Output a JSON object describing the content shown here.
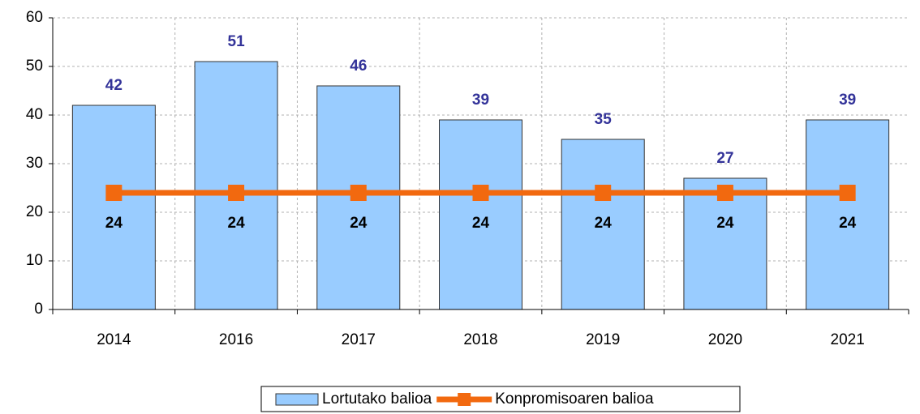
{
  "chart_data": {
    "type": "bar",
    "categories": [
      "2014",
      "2016",
      "2017",
      "2018",
      "2019",
      "2020",
      "2021"
    ],
    "series": [
      {
        "name": "Lortutako balioa",
        "type": "bar",
        "color": "#99ccff",
        "label_color": "#333399",
        "values": [
          42,
          51,
          46,
          39,
          35,
          27,
          39
        ]
      },
      {
        "name": "Konpromisoaren balioa",
        "type": "line",
        "color": "#f2690f",
        "label_color": "#000000",
        "values": [
          24,
          24,
          24,
          24,
          24,
          24,
          24
        ]
      }
    ],
    "ylim": [
      0,
      60
    ],
    "yticks": [
      0,
      10,
      20,
      30,
      40,
      50,
      60
    ],
    "grid": true,
    "legend": "bottom"
  }
}
